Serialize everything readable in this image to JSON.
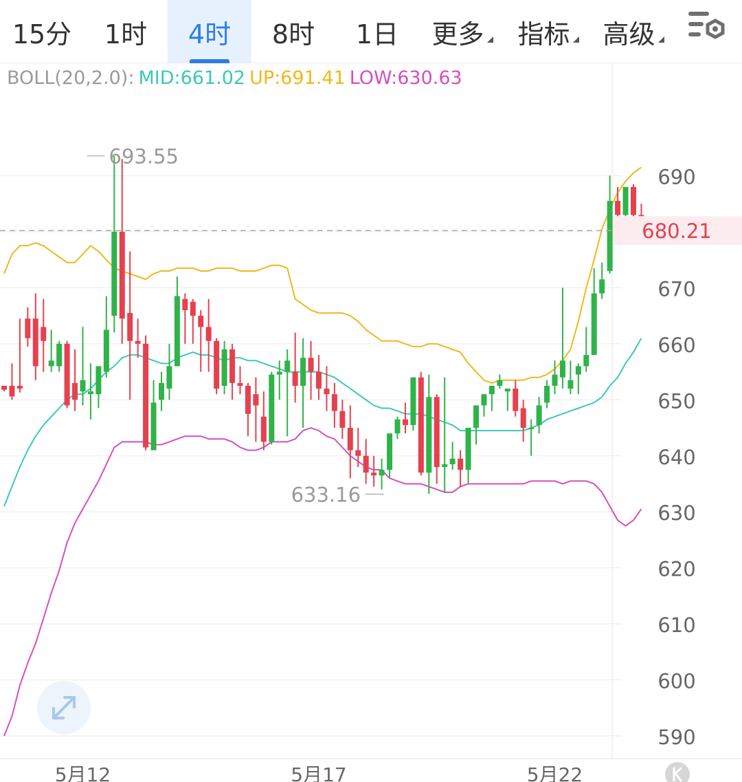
{
  "tabs": [
    {
      "label": "15分",
      "active": false,
      "dropdown": false
    },
    {
      "label": "1时",
      "active": false,
      "dropdown": false
    },
    {
      "label": "4时",
      "active": true,
      "dropdown": false
    },
    {
      "label": "8时",
      "active": false,
      "dropdown": false
    },
    {
      "label": "1日",
      "active": false,
      "dropdown": false
    },
    {
      "label": "更多",
      "active": false,
      "dropdown": true
    },
    {
      "label": "指标",
      "active": false,
      "dropdown": true
    },
    {
      "label": "高级",
      "active": false,
      "dropdown": true
    }
  ],
  "settings_icon": "chart-settings-icon",
  "legend": {
    "name": "BOLL(20,2.0):",
    "mid_label": "MID:661.02",
    "up_label": "UP:691.41",
    "low_label": "LOW:630.63"
  },
  "colors": {
    "up_candle": "#2fb34a",
    "down_candle": "#e5414f",
    "mid_line": "#3cc9b4",
    "upper_band": "#efb81a",
    "lower_band": "#d64fbe",
    "legend_name": "#9a9a9a",
    "active_tab": "#2f7fe0",
    "current_price": "#e0424e"
  },
  "chart_data": {
    "type": "candlestick",
    "interval": "4时",
    "ylim": [
      588,
      700
    ],
    "y_ticks": [
      590,
      600,
      610,
      620,
      630,
      640,
      650,
      660,
      670,
      680,
      690
    ],
    "y_tick_labels": [
      "590",
      "600",
      "610",
      "620",
      "630",
      "640",
      "650",
      "660",
      "670",
      "",
      "690"
    ],
    "x_tick_labels": [
      {
        "label": "5月12",
        "index": 10
      },
      {
        "label": "5月17",
        "index": 40
      },
      {
        "label": "5月22",
        "index": 70
      }
    ],
    "current_price": 680.21,
    "current_price_label": "680.21",
    "annotations": [
      {
        "label": "693.55",
        "value": 693.55,
        "index": 10
      },
      {
        "label": "633.16",
        "value": 633.16,
        "index": 49
      }
    ],
    "candles": [
      [
        652.5,
        652.5,
        651.8,
        651.5
      ],
      [
        652.5,
        656.5,
        650.6,
        650.0
      ],
      [
        652.5,
        664.5,
        652.0,
        651.3
      ],
      [
        664.5,
        666.5,
        661.0,
        659.5
      ],
      [
        664.5,
        669.0,
        656.0,
        653.5
      ],
      [
        663.0,
        668.0,
        660.5,
        655.0
      ],
      [
        656.0,
        662.5,
        657.0,
        655.0
      ],
      [
        656.0,
        660.5,
        660.0,
        655.0
      ],
      [
        660.0,
        660.5,
        649.0,
        648.5
      ],
      [
        653.0,
        659.0,
        650.0,
        648.0
      ],
      [
        651.5,
        663.0,
        653.5,
        649.0
      ],
      [
        651.0,
        656.5,
        651.5,
        646.5
      ],
      [
        651.0,
        656.0,
        656.0,
        648.5
      ],
      [
        655.0,
        668.5,
        662.5,
        654.0
      ],
      [
        665.0,
        693.5,
        680.0,
        662.0
      ],
      [
        680.0,
        693.0,
        664.5,
        660.0
      ],
      [
        665.5,
        676.5,
        660.5,
        650.0
      ],
      [
        660.5,
        664.5,
        660.0,
        657.5
      ],
      [
        660.0,
        661.5,
        641.5,
        641.0
      ],
      [
        641.0,
        653.5,
        649.5,
        641.5
      ],
      [
        650.0,
        655.0,
        653.0,
        648.0
      ],
      [
        652.0,
        660.0,
        656.0,
        650.0
      ],
      [
        656.0,
        672.0,
        668.5,
        656.5
      ],
      [
        668.0,
        669.0,
        666.0,
        660.0
      ],
      [
        667.5,
        668.0,
        665.0,
        660.0
      ],
      [
        665.0,
        666.0,
        663.0,
        655.0
      ],
      [
        663.0,
        668.0,
        660.5,
        655.0
      ],
      [
        660.5,
        661.0,
        652.0,
        651.0
      ],
      [
        652.5,
        660.5,
        659.0,
        651.0
      ],
      [
        659.0,
        660.0,
        653.0,
        650.0
      ],
      [
        653.0,
        656.0,
        652.5,
        651.0
      ],
      [
        652.5,
        653.0,
        647.5,
        643.5
      ],
      [
        651.0,
        654.0,
        649.0,
        642.5
      ],
      [
        647.0,
        651.5,
        642.5,
        641.0
      ],
      [
        642.5,
        655.0,
        654.5,
        642.0
      ],
      [
        654.5,
        657.0,
        655.0,
        650.0
      ],
      [
        655.0,
        659.0,
        657.0,
        643.5
      ],
      [
        655.0,
        662.0,
        652.5,
        649.5
      ],
      [
        652.5,
        661.0,
        657.5,
        645.0
      ],
      [
        657.5,
        660.5,
        655.0,
        650.0
      ],
      [
        655.0,
        658.0,
        652.0,
        650.0
      ],
      [
        652.0,
        656.0,
        651.0,
        648.0
      ],
      [
        651.0,
        653.0,
        648.0,
        645.0
      ],
      [
        648.0,
        650.0,
        645.0,
        643.0
      ],
      [
        645.0,
        649.0,
        641.0,
        636.0
      ],
      [
        641.0,
        645.0,
        640.0,
        638.0
      ],
      [
        640.0,
        643.0,
        637.0,
        635.0
      ],
      [
        637.0,
        640.0,
        636.5,
        634.5
      ],
      [
        636.5,
        639.5,
        637.5,
        634.0
      ],
      [
        637.5,
        643.5,
        644.0,
        636.0
      ],
      [
        644.0,
        647.0,
        646.5,
        643.0
      ],
      [
        646.5,
        649.5,
        645.5,
        644.0
      ],
      [
        645.5,
        654.0,
        654.0,
        644.5
      ],
      [
        654.0,
        655.0,
        637.0,
        636.5
      ],
      [
        637.0,
        654.5,
        650.5,
        633.2
      ],
      [
        650.5,
        651.0,
        638.0,
        635.0
      ],
      [
        638.0,
        654.0,
        638.5,
        633.5
      ],
      [
        638.5,
        642.5,
        639.5,
        637.5
      ],
      [
        639.5,
        641.0,
        637.5,
        634.5
      ],
      [
        637.5,
        645.0,
        645.0,
        635.0
      ],
      [
        645.0,
        649.0,
        649.0,
        642.0
      ],
      [
        649.0,
        651.0,
        651.0,
        647.0
      ],
      [
        651.0,
        652.5,
        652.5,
        648.0
      ],
      [
        652.5,
        654.5,
        653.5,
        652.0
      ],
      [
        651.5,
        652.0,
        652.0,
        648.0
      ],
      [
        652.0,
        653.5,
        648.0,
        647.0
      ],
      [
        648.5,
        650.0,
        645.0,
        642.5
      ],
      [
        645.0,
        646.5,
        645.0,
        640.0
      ],
      [
        645.5,
        650.5,
        649.0,
        644.0
      ],
      [
        649.5,
        653.5,
        652.5,
        648.5
      ],
      [
        652.5,
        657.0,
        654.5,
        651.0
      ],
      [
        654.0,
        670.0,
        657.0,
        652.0
      ],
      [
        652.0,
        657.0,
        653.5,
        651.0
      ],
      [
        654.5,
        656.5,
        656.0,
        651.0
      ],
      [
        656.0,
        663.0,
        658.0,
        655.0
      ],
      [
        658.0,
        673.5,
        669.0,
        659.0
      ],
      [
        669.0,
        674.5,
        671.5,
        668.0
      ],
      [
        673.0,
        690.0,
        685.5,
        672.5
      ],
      [
        685.5,
        688.0,
        683.0,
        680.0
      ],
      [
        683.0,
        688.0,
        688.0,
        681.0
      ],
      [
        688.0,
        688.5,
        683.0,
        681.0
      ],
      [
        683.0,
        685.0,
        681.5,
        680.0
      ]
    ],
    "series": [
      {
        "name": "MID",
        "values": [
          631.0,
          634.5,
          638.0,
          641.0,
          643.5,
          645.5,
          647.0,
          648.5,
          650.0,
          651.0,
          651.0,
          652.0,
          653.5,
          655.0,
          656.0,
          657.5,
          658.0,
          658.0,
          657.5,
          657.0,
          656.5,
          656.5,
          657.5,
          658.0,
          658.5,
          658.0,
          658.0,
          657.5,
          657.0,
          657.5,
          657.5,
          657.0,
          657.0,
          656.5,
          656.0,
          655.5,
          655.0,
          655.0,
          655.0,
          655.0,
          655.0,
          654.5,
          654.0,
          653.0,
          652.0,
          651.0,
          650.0,
          649.0,
          648.5,
          648.5,
          648.0,
          647.5,
          647.5,
          647.5,
          647.0,
          646.5,
          646.0,
          645.5,
          644.5,
          644.5,
          644.5,
          644.5,
          644.5,
          644.5,
          644.5,
          644.5,
          644.5,
          645.0,
          645.5,
          646.5,
          647.0,
          647.5,
          648.0,
          648.5,
          649.0,
          649.5,
          650.5,
          652.5,
          654.0,
          656.5,
          658.5,
          661.0
        ]
      },
      {
        "name": "UP",
        "values": [
          672.5,
          676.0,
          677.5,
          677.5,
          678.0,
          677.5,
          676.5,
          675.5,
          674.5,
          674.5,
          676.0,
          677.5,
          676.5,
          675.0,
          673.5,
          673.0,
          672.5,
          672.0,
          671.5,
          672.5,
          673.0,
          673.0,
          673.5,
          673.5,
          673.5,
          673.0,
          673.0,
          673.5,
          673.5,
          673.5,
          673.0,
          673.0,
          673.0,
          673.5,
          674.0,
          674.0,
          673.5,
          668.0,
          667.0,
          666.0,
          665.5,
          665.5,
          665.5,
          665.5,
          665.0,
          664.0,
          662.5,
          661.5,
          660.5,
          660.5,
          660.5,
          660.0,
          659.5,
          659.5,
          660.0,
          660.0,
          659.5,
          659.0,
          658.5,
          656.5,
          655.0,
          653.5,
          653.0,
          653.5,
          653.5,
          653.5,
          653.5,
          654.0,
          654.0,
          654.5,
          655.5,
          657.0,
          659.0,
          664.0,
          670.0,
          675.0,
          680.5,
          684.0,
          687.0,
          689.0,
          690.5,
          691.5
        ]
      },
      {
        "name": "LOW",
        "values": [
          590.0,
          593.5,
          599.0,
          603.0,
          606.5,
          611.0,
          615.5,
          619.5,
          624.5,
          628.0,
          630.5,
          633.0,
          635.5,
          638.5,
          641.5,
          642.5,
          642.5,
          642.5,
          642.5,
          642.0,
          642.0,
          642.5,
          643.0,
          643.5,
          643.5,
          643.5,
          643.0,
          643.0,
          643.0,
          642.5,
          641.5,
          641.0,
          641.0,
          641.5,
          642.5,
          642.5,
          642.5,
          643.0,
          644.5,
          645.0,
          644.5,
          643.5,
          643.0,
          641.5,
          640.0,
          639.0,
          638.0,
          637.5,
          637.5,
          636.0,
          635.5,
          635.0,
          635.0,
          635.0,
          634.5,
          634.0,
          633.5,
          633.5,
          634.5,
          635.0,
          635.0,
          635.0,
          635.0,
          635.0,
          635.0,
          635.0,
          635.0,
          635.5,
          635.5,
          635.5,
          635.5,
          635.0,
          635.5,
          635.5,
          635.5,
          635.0,
          633.5,
          631.0,
          628.5,
          627.5,
          628.5,
          630.5
        ]
      }
    ]
  }
}
